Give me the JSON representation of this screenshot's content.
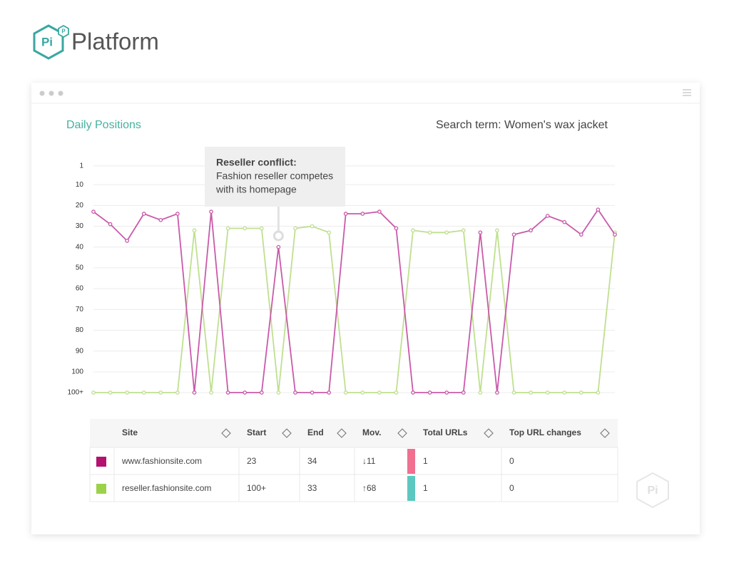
{
  "header": {
    "logo": "Pi",
    "logo_badge": "P",
    "brand": "Platform"
  },
  "chart_data": {
    "type": "line",
    "title": "Daily Positions",
    "subtitle": "Search term: Women's wax jacket",
    "ylim": [
      0,
      110
    ],
    "inverted": true,
    "yticks": [
      1,
      10,
      20,
      30,
      40,
      50,
      60,
      70,
      80,
      90,
      100,
      {
        "value": 110,
        "label": "100+"
      }
    ],
    "grid": true,
    "series": [
      {
        "name": "www.fashionsite.com",
        "color": "#c95aa9",
        "swatch": "#b3126f",
        "values": [
          23,
          29,
          37,
          24,
          27,
          24,
          110,
          23,
          110,
          110,
          110,
          40,
          110,
          110,
          110,
          24,
          24,
          23,
          31,
          110,
          110,
          110,
          110,
          33,
          110,
          34,
          32,
          25,
          28,
          34,
          22,
          34
        ]
      },
      {
        "name": "reseller.fashionsite.com",
        "color": "#bfe08f",
        "swatch": "#9bd24a",
        "values": [
          110,
          110,
          110,
          110,
          110,
          110,
          32,
          110,
          31,
          31,
          31,
          110,
          31,
          30,
          33,
          110,
          110,
          110,
          110,
          32,
          33,
          33,
          32,
          110,
          32,
          110,
          110,
          110,
          110,
          110,
          110,
          33
        ]
      }
    ],
    "annotation": {
      "title": "Reseller conflict:",
      "lines": [
        "Fashion reseller competes",
        "with its homepage"
      ],
      "index": 11
    }
  },
  "table": {
    "columns": [
      "Site",
      "Start",
      "End",
      "Mov.",
      "Total URLs",
      "Top URL changes"
    ],
    "rows": [
      {
        "site": "www.fashionsite.com",
        "start": "23",
        "end": "34",
        "mov": "↓11",
        "mov_color": "#e8497a",
        "bar_color": "#f07090",
        "total_urls": "1",
        "top_url_changes": "0"
      },
      {
        "site": "reseller.fashionsite.com",
        "start": "100+",
        "end": "33",
        "mov": "↑68",
        "mov_color": "#3bb5a8",
        "bar_color": "#5cc8c0",
        "total_urls": "1",
        "top_url_changes": "0"
      }
    ]
  }
}
